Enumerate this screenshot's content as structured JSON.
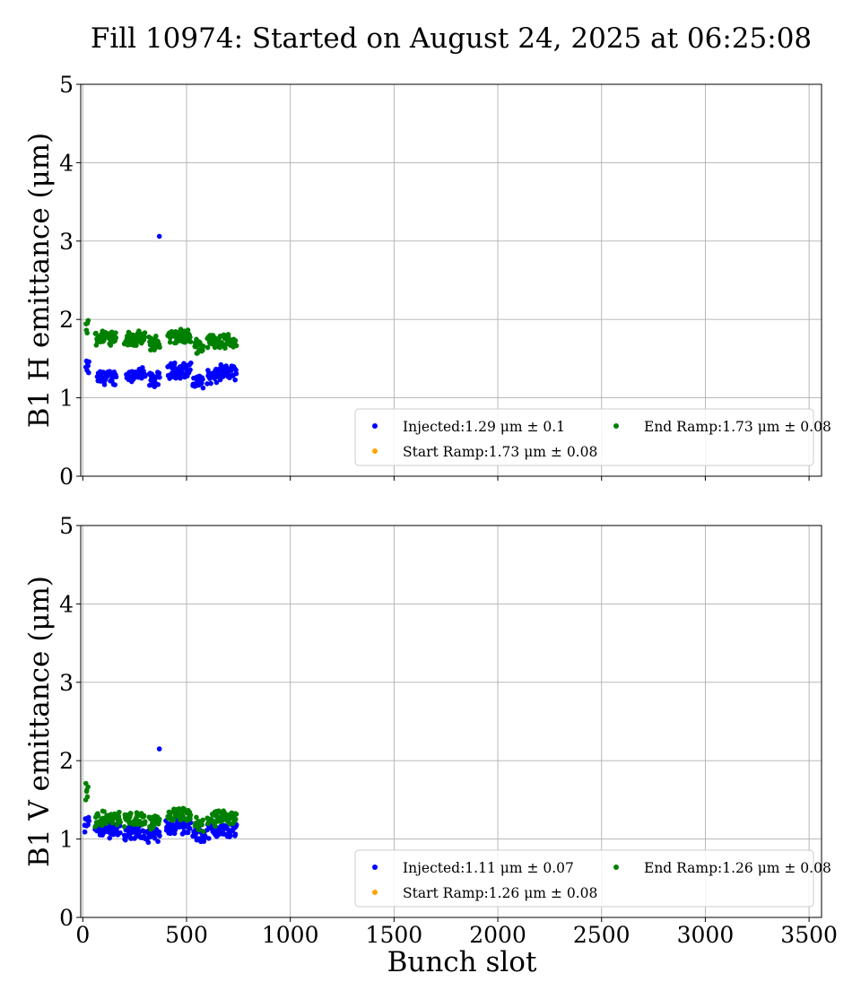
{
  "title": "Fill 10974: Started on August 24, 2025 at 06:25:08",
  "colors": {
    "injected": "#0000ff",
    "start_ramp": "#ffa500",
    "end_ramp": "#008000",
    "grid": "#b0b0b0"
  },
  "chart_data": [
    {
      "type": "scatter",
      "id": "h",
      "ylabel": "B1 H emittance (μm)",
      "xlabel": "",
      "xlim": [
        -10,
        3560
      ],
      "ylim": [
        0,
        5
      ],
      "xticks": [
        0,
        500,
        1000,
        1500,
        2000,
        2500,
        3000,
        3500
      ],
      "yticks": [
        0,
        1,
        2,
        3,
        4,
        5
      ],
      "grid": true,
      "legend_position": "lower-right",
      "series": [
        {
          "key": "injected",
          "name": "Injected",
          "legend_label": "Injected:1.29 μm ± 0.1",
          "mean": 1.29,
          "std": 0.1,
          "groups": [
            [
              15,
              30,
              1.38
            ],
            [
              70,
              160,
              1.26
            ],
            [
              210,
              300,
              1.29
            ],
            [
              320,
              370,
              1.23
            ],
            [
              410,
              520,
              1.35
            ],
            [
              530,
              580,
              1.21
            ],
            [
              600,
              650,
              1.27
            ],
            [
              650,
              740,
              1.32
            ]
          ],
          "outliers": [
            [
              369,
              3.06
            ]
          ]
        },
        {
          "key": "start_ramp",
          "name": "Start Ramp",
          "legend_label": "Start Ramp:1.73 μm ± 0.08",
          "mean": 1.73,
          "std": 0.08,
          "groups": [],
          "outliers": []
        },
        {
          "key": "end_ramp",
          "name": "End Ramp",
          "legend_label": "End Ramp:1.73 μm ± 0.08",
          "mean": 1.73,
          "std": 0.08,
          "groups": [
            [
              15,
              25,
              1.9
            ],
            [
              60,
              160,
              1.78
            ],
            [
              200,
              300,
              1.75
            ],
            [
              320,
              370,
              1.7
            ],
            [
              410,
              520,
              1.78
            ],
            [
              540,
              580,
              1.66
            ],
            [
              600,
              740,
              1.72
            ]
          ],
          "outliers": []
        }
      ]
    },
    {
      "type": "scatter",
      "id": "v",
      "ylabel": "B1 V emittance (μm)",
      "xlabel": "Bunch slot",
      "xlim": [
        -10,
        3560
      ],
      "ylim": [
        0,
        5
      ],
      "xticks": [
        0,
        500,
        1000,
        1500,
        2000,
        2500,
        3000,
        3500
      ],
      "yticks": [
        0,
        1,
        2,
        3,
        4,
        5
      ],
      "grid": true,
      "legend_position": "lower-right",
      "series": [
        {
          "key": "injected",
          "name": "Injected",
          "legend_label": "Injected:1.11 μm ± 0.07",
          "mean": 1.11,
          "std": 0.07,
          "groups": [
            [
              10,
              30,
              1.2
            ],
            [
              60,
              180,
              1.12
            ],
            [
              200,
              300,
              1.08
            ],
            [
              310,
              370,
              1.05
            ],
            [
              400,
              520,
              1.16
            ],
            [
              530,
              590,
              1.06
            ],
            [
              600,
              740,
              1.11
            ]
          ],
          "outliers": [
            [
              369,
              2.15
            ],
            [
              10,
              1.09
            ]
          ]
        },
        {
          "key": "start_ramp",
          "name": "Start Ramp",
          "legend_label": "Start Ramp:1.26 μm ± 0.08",
          "mean": 1.26,
          "std": 0.08,
          "groups": [],
          "outliers": []
        },
        {
          "key": "end_ramp",
          "name": "End Ramp",
          "legend_label": "End Ramp:1.26 μm ± 0.08",
          "mean": 1.26,
          "std": 0.08,
          "groups": [
            [
              15,
              25,
              1.6
            ],
            [
              60,
              180,
              1.26
            ],
            [
              200,
              300,
              1.25
            ],
            [
              320,
              370,
              1.2
            ],
            [
              410,
              520,
              1.3
            ],
            [
              540,
              580,
              1.18
            ],
            [
              600,
              740,
              1.26
            ]
          ],
          "outliers": [
            [
              15,
              1.71
            ]
          ]
        }
      ]
    }
  ]
}
